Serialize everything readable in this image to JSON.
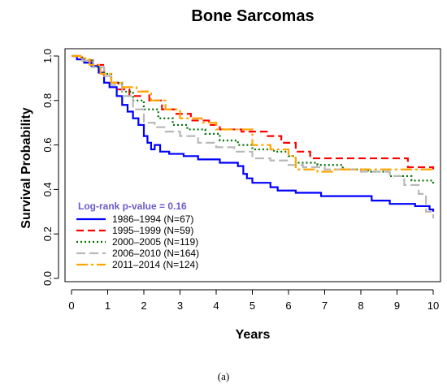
{
  "chart_data": {
    "type": "line",
    "step": true,
    "title": "Bone Sarcomas",
    "xlabel": "Years",
    "ylabel": "Survival Probability",
    "xlim": [
      0,
      10
    ],
    "ylim": [
      0,
      1
    ],
    "xticks": [
      0,
      1,
      2,
      3,
      4,
      5,
      6,
      7,
      8,
      9,
      10
    ],
    "yticks": [
      0.0,
      0.2,
      0.4,
      0.6,
      0.8,
      1.0
    ],
    "ytick_labels": [
      "0.0",
      "0.2",
      "0.4",
      "0.6",
      "0.8",
      "1.0"
    ],
    "grid": false,
    "legend_title": "Log-rank p-value = 0.16",
    "legend_title_color": "#6a5acd",
    "legend_position": "bottom-left",
    "series": [
      {
        "name": "1986–1994 (N=67)",
        "color": "#0000ff",
        "dash": "",
        "x": [
          0,
          0.15,
          0.35,
          0.55,
          0.75,
          0.9,
          1.05,
          1.25,
          1.4,
          1.55,
          1.7,
          1.85,
          2.0,
          2.1,
          2.2,
          2.3,
          2.45,
          2.7,
          3.1,
          3.5,
          4.1,
          4.6,
          4.75,
          4.85,
          5.0,
          5.5,
          5.7,
          6.2,
          6.9,
          8.3,
          8.8,
          9.5,
          9.9,
          10.0
        ],
        "y": [
          1.0,
          0.985,
          0.97,
          0.955,
          0.925,
          0.88,
          0.86,
          0.82,
          0.78,
          0.75,
          0.72,
          0.69,
          0.64,
          0.61,
          0.58,
          0.6,
          0.57,
          0.56,
          0.55,
          0.535,
          0.52,
          0.505,
          0.47,
          0.45,
          0.43,
          0.41,
          0.395,
          0.385,
          0.37,
          0.35,
          0.335,
          0.325,
          0.31,
          0.3
        ]
      },
      {
        "name": "1995–1999 (N=59)",
        "color": "#ff0000",
        "dash": "9,5",
        "x": [
          0,
          0.3,
          0.6,
          0.9,
          1.1,
          1.3,
          1.6,
          1.9,
          2.15,
          2.5,
          2.9,
          3.3,
          3.8,
          4.1,
          4.7,
          5.4,
          5.8,
          6.2,
          6.6,
          9.1,
          9.3,
          10.0
        ],
        "y": [
          1.0,
          0.98,
          0.96,
          0.91,
          0.88,
          0.85,
          0.82,
          0.84,
          0.8,
          0.76,
          0.74,
          0.71,
          0.69,
          0.67,
          0.66,
          0.64,
          0.61,
          0.57,
          0.54,
          0.54,
          0.5,
          0.49
        ]
      },
      {
        "name": "2000–2005 (N=119)",
        "color": "#007000",
        "dash": "2,3",
        "x": [
          0,
          0.3,
          0.6,
          0.9,
          1.1,
          1.4,
          1.7,
          2.0,
          2.4,
          2.8,
          3.2,
          3.7,
          4.1,
          4.6,
          5.0,
          5.6,
          6.0,
          6.2,
          6.8,
          7.5,
          8.2,
          8.8,
          9.4,
          10.0
        ],
        "y": [
          1.0,
          0.98,
          0.95,
          0.92,
          0.88,
          0.84,
          0.8,
          0.76,
          0.72,
          0.69,
          0.67,
          0.65,
          0.62,
          0.6,
          0.58,
          0.57,
          0.55,
          0.52,
          0.51,
          0.49,
          0.48,
          0.46,
          0.44,
          0.42
        ]
      },
      {
        "name": "2006–2010 (N=164)",
        "color": "#b8b8b8",
        "dash": "11,5",
        "x": [
          0,
          0.3,
          0.6,
          0.9,
          1.1,
          1.4,
          1.7,
          2.0,
          2.3,
          2.6,
          3.0,
          3.5,
          4.0,
          4.5,
          5.0,
          5.5,
          6.0,
          6.4,
          7.0,
          8.0,
          8.8,
          9.2,
          9.6,
          9.8,
          10.0
        ],
        "y": [
          1.0,
          0.98,
          0.95,
          0.91,
          0.87,
          0.82,
          0.76,
          0.7,
          0.68,
          0.66,
          0.64,
          0.61,
          0.59,
          0.57,
          0.54,
          0.53,
          0.51,
          0.5,
          0.49,
          0.48,
          0.46,
          0.42,
          0.38,
          0.3,
          0.27
        ]
      },
      {
        "name": "2011–2014 (N=124)",
        "color": "#ffa500",
        "dash": "14,4,3,4",
        "x": [
          0,
          0.25,
          0.5,
          0.8,
          1.1,
          1.4,
          1.8,
          2.2,
          2.6,
          3.0,
          3.6,
          4.0,
          5.0,
          5.5,
          6.0,
          6.2,
          6.8,
          7.2,
          8.0,
          10.0
        ],
        "y": [
          1.0,
          0.99,
          0.96,
          0.92,
          0.88,
          0.86,
          0.84,
          0.8,
          0.76,
          0.72,
          0.7,
          0.67,
          0.6,
          0.58,
          0.55,
          0.49,
          0.48,
          0.49,
          0.49,
          0.49
        ]
      }
    ]
  },
  "caption": "(a)"
}
